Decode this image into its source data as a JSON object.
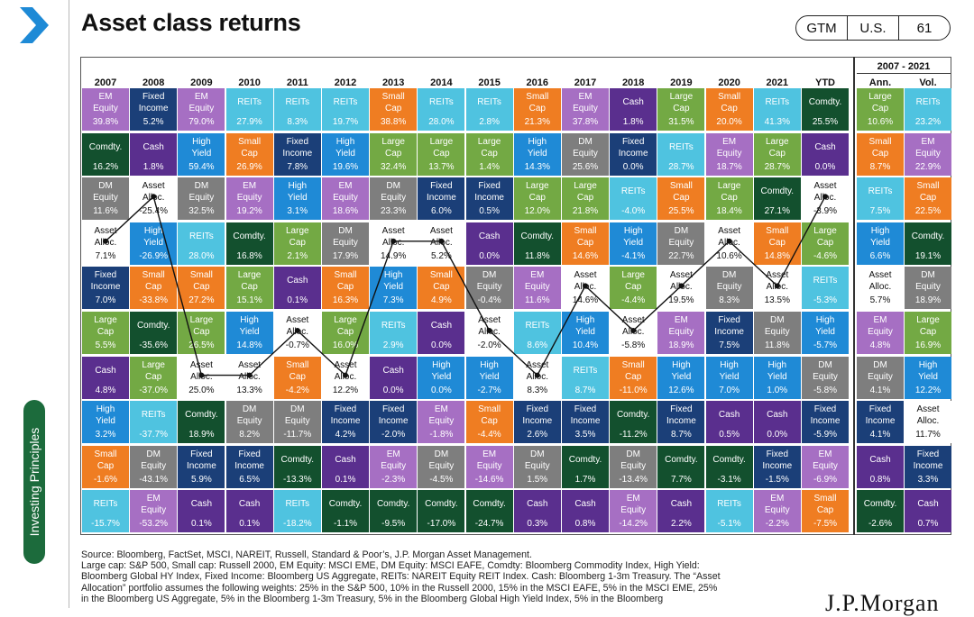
{
  "header": {
    "title": "Asset class returns",
    "badges": [
      "GTM",
      "U.S.",
      "61"
    ]
  },
  "sidebar": {
    "label": "Investing Principles"
  },
  "colors": {
    "Large Cap": "#73a944",
    "Small Cap": "#ef7d22",
    "EM Equity": "#a66fc3",
    "DM Equity": "#7e7e7e",
    "Comdty.": "#13502e",
    "High Yield": "#1f8ad6",
    "Fixed Income": "#1b3f78",
    "REITs": "#4fc3e0",
    "Cash": "#5a2f8e",
    "Asset Alloc.": "#ffffff",
    "line": "#111111"
  },
  "chart_data": {
    "type": "table",
    "title": "Asset class returns",
    "range_header": "2007 - 2021",
    "columns": [
      "2007",
      "2008",
      "2009",
      "2010",
      "2011",
      "2012",
      "2013",
      "2014",
      "2015",
      "2016",
      "2017",
      "2018",
      "2019",
      "2020",
      "2021",
      "YTD",
      "Ann.",
      "Vol."
    ],
    "grid": [
      [
        [
          "EM Equity",
          "39.8%"
        ],
        [
          "Fixed Income",
          "5.2%"
        ],
        [
          "EM Equity",
          "79.0%"
        ],
        [
          "REITs",
          "27.9%"
        ],
        [
          "REITs",
          "8.3%"
        ],
        [
          "REITs",
          "19.7%"
        ],
        [
          "Small Cap",
          "38.8%"
        ],
        [
          "REITs",
          "28.0%"
        ],
        [
          "REITs",
          "2.8%"
        ],
        [
          "Small Cap",
          "21.3%"
        ],
        [
          "EM Equity",
          "37.8%"
        ],
        [
          "Cash",
          "1.8%"
        ],
        [
          "Large Cap",
          "31.5%"
        ],
        [
          "Small Cap",
          "20.0%"
        ],
        [
          "REITs",
          "41.3%"
        ],
        [
          "Comdty.",
          "25.5%"
        ],
        [
          "Large Cap",
          "10.6%"
        ],
        [
          "REITs",
          "23.2%"
        ]
      ],
      [
        [
          "Comdty.",
          "16.2%"
        ],
        [
          "Cash",
          "1.8%"
        ],
        [
          "High Yield",
          "59.4%"
        ],
        [
          "Small Cap",
          "26.9%"
        ],
        [
          "Fixed Income",
          "7.8%"
        ],
        [
          "High Yield",
          "19.6%"
        ],
        [
          "Large Cap",
          "32.4%"
        ],
        [
          "Large Cap",
          "13.7%"
        ],
        [
          "Large Cap",
          "1.4%"
        ],
        [
          "High Yield",
          "14.3%"
        ],
        [
          "DM Equity",
          "25.6%"
        ],
        [
          "Fixed Income",
          "0.0%"
        ],
        [
          "REITs",
          "28.7%"
        ],
        [
          "EM Equity",
          "18.7%"
        ],
        [
          "Large Cap",
          "28.7%"
        ],
        [
          "Cash",
          "0.0%"
        ],
        [
          "Small Cap",
          "8.7%"
        ],
        [
          "EM Equity",
          "22.9%"
        ]
      ],
      [
        [
          "DM Equity",
          "11.6%"
        ],
        [
          "Asset Alloc.",
          "-25.4%"
        ],
        [
          "DM Equity",
          "32.5%"
        ],
        [
          "EM Equity",
          "19.2%"
        ],
        [
          "High Yield",
          "3.1%"
        ],
        [
          "EM Equity",
          "18.6%"
        ],
        [
          "DM Equity",
          "23.3%"
        ],
        [
          "Fixed Income",
          "6.0%"
        ],
        [
          "Fixed Income",
          "0.5%"
        ],
        [
          "Large Cap",
          "12.0%"
        ],
        [
          "Large Cap",
          "21.8%"
        ],
        [
          "REITs",
          "-4.0%"
        ],
        [
          "Small Cap",
          "25.5%"
        ],
        [
          "Large Cap",
          "18.4%"
        ],
        [
          "Comdty.",
          "27.1%"
        ],
        [
          "Asset Alloc.",
          "-3.9%"
        ],
        [
          "REITs",
          "7.5%"
        ],
        [
          "Small Cap",
          "22.5%"
        ]
      ],
      [
        [
          "Asset Alloc.",
          "7.1%"
        ],
        [
          "High Yield",
          "-26.9%"
        ],
        [
          "REITs",
          "28.0%"
        ],
        [
          "Comdty.",
          "16.8%"
        ],
        [
          "Large Cap",
          "2.1%"
        ],
        [
          "DM Equity",
          "17.9%"
        ],
        [
          "Asset Alloc.",
          "14.9%"
        ],
        [
          "Asset Alloc.",
          "5.2%"
        ],
        [
          "Cash",
          "0.0%"
        ],
        [
          "Comdty.",
          "11.8%"
        ],
        [
          "Small Cap",
          "14.6%"
        ],
        [
          "High Yield",
          "-4.1%"
        ],
        [
          "DM Equity",
          "22.7%"
        ],
        [
          "Asset Alloc.",
          "10.6%"
        ],
        [
          "Small Cap",
          "14.8%"
        ],
        [
          "Large Cap",
          "-4.6%"
        ],
        [
          "High Yield",
          "6.6%"
        ],
        [
          "Comdty.",
          "19.1%"
        ]
      ],
      [
        [
          "Fixed Income",
          "7.0%"
        ],
        [
          "Small Cap",
          "-33.8%"
        ],
        [
          "Small Cap",
          "27.2%"
        ],
        [
          "Large Cap",
          "15.1%"
        ],
        [
          "Cash",
          "0.1%"
        ],
        [
          "Small Cap",
          "16.3%"
        ],
        [
          "High Yield",
          "7.3%"
        ],
        [
          "Small Cap",
          "4.9%"
        ],
        [
          "DM Equity",
          "-0.4%"
        ],
        [
          "EM Equity",
          "11.6%"
        ],
        [
          "Asset Alloc.",
          "14.6%"
        ],
        [
          "Large Cap",
          "-4.4%"
        ],
        [
          "Asset Alloc.",
          "19.5%"
        ],
        [
          "DM Equity",
          "8.3%"
        ],
        [
          "Asset Alloc.",
          "13.5%"
        ],
        [
          "REITs",
          "-5.3%"
        ],
        [
          "Asset Alloc.",
          "5.7%"
        ],
        [
          "DM Equity",
          "18.9%"
        ]
      ],
      [
        [
          "Large Cap",
          "5.5%"
        ],
        [
          "Comdty.",
          "-35.6%"
        ],
        [
          "Large Cap",
          "26.5%"
        ],
        [
          "High Yield",
          "14.8%"
        ],
        [
          "Asset Alloc.",
          "-0.7%"
        ],
        [
          "Large Cap",
          "16.0%"
        ],
        [
          "REITs",
          "2.9%"
        ],
        [
          "Cash",
          "0.0%"
        ],
        [
          "Asset Alloc.",
          "-2.0%"
        ],
        [
          "REITs",
          "8.6%"
        ],
        [
          "High Yield",
          "10.4%"
        ],
        [
          "Asset Alloc.",
          "-5.8%"
        ],
        [
          "EM Equity",
          "18.9%"
        ],
        [
          "Fixed Income",
          "7.5%"
        ],
        [
          "DM Equity",
          "11.8%"
        ],
        [
          "High Yield",
          "-5.7%"
        ],
        [
          "EM Equity",
          "4.8%"
        ],
        [
          "Large Cap",
          "16.9%"
        ]
      ],
      [
        [
          "Cash",
          "4.8%"
        ],
        [
          "Large Cap",
          "-37.0%"
        ],
        [
          "Asset Alloc.",
          "25.0%"
        ],
        [
          "Asset Alloc.",
          "13.3%"
        ],
        [
          "Small Cap",
          "-4.2%"
        ],
        [
          "Asset Alloc.",
          "12.2%"
        ],
        [
          "Cash",
          "0.0%"
        ],
        [
          "High Yield",
          "0.0%"
        ],
        [
          "High Yield",
          "-2.7%"
        ],
        [
          "Asset Alloc.",
          "8.3%"
        ],
        [
          "REITs",
          "8.7%"
        ],
        [
          "Small Cap",
          "-11.0%"
        ],
        [
          "High Yield",
          "12.6%"
        ],
        [
          "High Yield",
          "7.0%"
        ],
        [
          "High Yield",
          "1.0%"
        ],
        [
          "DM Equity",
          "-5.8%"
        ],
        [
          "DM Equity",
          "4.1%"
        ],
        [
          "High Yield",
          "12.2%"
        ]
      ],
      [
        [
          "High Yield",
          "3.2%"
        ],
        [
          "REITs",
          "-37.7%"
        ],
        [
          "Comdty.",
          "18.9%"
        ],
        [
          "DM Equity",
          "8.2%"
        ],
        [
          "DM Equity",
          "-11.7%"
        ],
        [
          "Fixed Income",
          "4.2%"
        ],
        [
          "Fixed Income",
          "-2.0%"
        ],
        [
          "EM Equity",
          "-1.8%"
        ],
        [
          "Small Cap",
          "-4.4%"
        ],
        [
          "Fixed Income",
          "2.6%"
        ],
        [
          "Fixed Income",
          "3.5%"
        ],
        [
          "Comdty.",
          "-11.2%"
        ],
        [
          "Fixed Income",
          "8.7%"
        ],
        [
          "Cash",
          "0.5%"
        ],
        [
          "Cash",
          "0.0%"
        ],
        [
          "Fixed Income",
          "-5.9%"
        ],
        [
          "Fixed Income",
          "4.1%"
        ],
        [
          "Asset Alloc.",
          "11.7%"
        ]
      ],
      [
        [
          "Small Cap",
          "-1.6%"
        ],
        [
          "DM Equity",
          "-43.1%"
        ],
        [
          "Fixed Income",
          "5.9%"
        ],
        [
          "Fixed Income",
          "6.5%"
        ],
        [
          "Comdty.",
          "-13.3%"
        ],
        [
          "Cash",
          "0.1%"
        ],
        [
          "EM Equity",
          "-2.3%"
        ],
        [
          "DM Equity",
          "-4.5%"
        ],
        [
          "EM Equity",
          "-14.6%"
        ],
        [
          "DM Equity",
          "1.5%"
        ],
        [
          "Comdty.",
          "1.7%"
        ],
        [
          "DM Equity",
          "-13.4%"
        ],
        [
          "Comdty.",
          "7.7%"
        ],
        [
          "Comdty.",
          "-3.1%"
        ],
        [
          "Fixed Income",
          "-1.5%"
        ],
        [
          "EM Equity",
          "-6.9%"
        ],
        [
          "Cash",
          "0.8%"
        ],
        [
          "Fixed Income",
          "3.3%"
        ]
      ],
      [
        [
          "REITs",
          "-15.7%"
        ],
        [
          "EM Equity",
          "-53.2%"
        ],
        [
          "Cash",
          "0.1%"
        ],
        [
          "Cash",
          "0.1%"
        ],
        [
          "REITs",
          "-18.2%"
        ],
        [
          "Comdty.",
          "-1.1%"
        ],
        [
          "Comdty.",
          "-9.5%"
        ],
        [
          "Comdty.",
          "-17.0%"
        ],
        [
          "Comdty.",
          "-24.7%"
        ],
        [
          "Cash",
          "0.3%"
        ],
        [
          "Cash",
          "0.8%"
        ],
        [
          "EM Equity",
          "-14.2%"
        ],
        [
          "Cash",
          "2.2%"
        ],
        [
          "REITs",
          "-5.1%"
        ],
        [
          "EM Equity",
          "-2.2%"
        ],
        [
          "Small Cap",
          "-7.5%"
        ],
        [
          "Comdty.",
          "-2.6%"
        ],
        [
          "Cash",
          "0.7%"
        ]
      ]
    ],
    "series": [
      {
        "values_ranks": [
          4,
          3,
          7,
          7,
          6,
          7,
          4,
          4,
          6,
          7,
          5,
          6,
          5,
          4,
          5,
          3,
          5,
          8
        ]
      }
    ]
  },
  "footnote": {
    "lines": [
      "Source: Bloomberg, FactSet, MSCI, NAREIT, Russell, Standard & Poor’s, J.P. Morgan Asset Management.",
      "Large cap: S&P 500, Small cap: Russell 2000, EM Equity: MSCI EME, DM Equity: MSCI EAFE, Comdty: Bloomberg Commodity Index, High Yield:",
      "Bloomberg Global HY Index, Fixed Income: Bloomberg US Aggregate, REITs: NAREIT Equity REIT Index. Cash: Bloomberg 1-3m Treasury. The “Asset",
      "Allocation” portfolio assumes the following weights: 25% in the S&P 500, 10% in the Russell 2000, 15% in the MSCI EAFE, 5% in the MSCI EME, 25%",
      "in the Bloomberg US Aggregate, 5% in the Bloomberg 1-3m Treasury, 5% in the Bloomberg Global High Yield Index, 5% in the Bloomberg"
    ]
  },
  "logo": {
    "text": "J.P.Morgan"
  }
}
